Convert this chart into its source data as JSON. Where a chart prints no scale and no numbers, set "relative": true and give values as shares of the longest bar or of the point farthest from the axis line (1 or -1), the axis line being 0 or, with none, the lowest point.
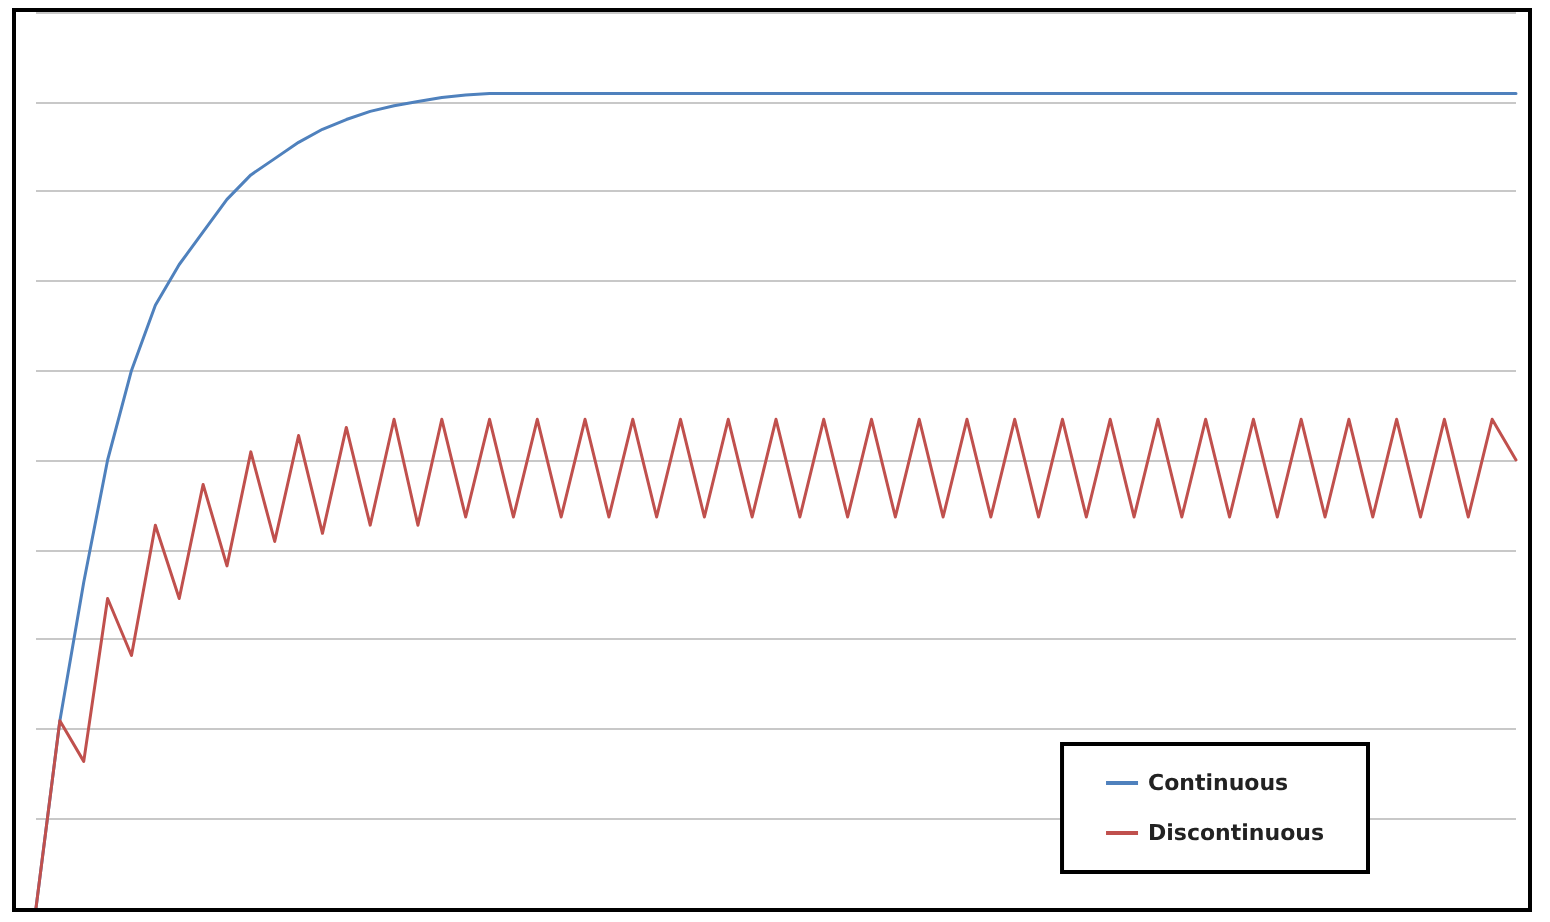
{
  "chart_data": {
    "type": "line",
    "relative": true,
    "categories": [
      null,
      null,
      null,
      null,
      null,
      null,
      null,
      null,
      null,
      null,
      null,
      null,
      null,
      null,
      null,
      null,
      null,
      null,
      null,
      null,
      null,
      null,
      null,
      null,
      null,
      null,
      null,
      null,
      null,
      null,
      null,
      null,
      null,
      null,
      null,
      null,
      null,
      null,
      null,
      null,
      null,
      null,
      null,
      null,
      null,
      null,
      null,
      null,
      null,
      null,
      null,
      null,
      null,
      null,
      null,
      null,
      null,
      null,
      null,
      null,
      null,
      null,
      null
    ],
    "series": [
      {
        "name": "Continuous",
        "color": "#4f81bd",
        "values": [
          0,
          0.23,
          0.4,
          0.55,
          0.66,
          0.74,
          0.79,
          0.83,
          0.87,
          0.9,
          0.92,
          0.94,
          0.956,
          0.968,
          0.978,
          0.985,
          0.99,
          0.995,
          0.998,
          1,
          1,
          1,
          1,
          1,
          1,
          1,
          1,
          1,
          1,
          1,
          1,
          1,
          1,
          1,
          1,
          1,
          1,
          1,
          1,
          1,
          1,
          1,
          1,
          1,
          1,
          1,
          1,
          1,
          1,
          1,
          1,
          1,
          1,
          1,
          1,
          1,
          1,
          1,
          1,
          1,
          1,
          1,
          1
        ]
      },
      {
        "name": "Discontinuous",
        "color": "#c0504d",
        "values": [
          0,
          0.23,
          0.18,
          0.38,
          0.31,
          0.47,
          0.38,
          0.52,
          0.42,
          0.56,
          0.45,
          0.58,
          0.46,
          0.59,
          0.47,
          0.6,
          0.47,
          0.6,
          0.48,
          0.6,
          0.48,
          0.6,
          0.48,
          0.6,
          0.48,
          0.6,
          0.48,
          0.6,
          0.48,
          0.6,
          0.48,
          0.6,
          0.48,
          0.6,
          0.48,
          0.6,
          0.48,
          0.6,
          0.48,
          0.6,
          0.48,
          0.6,
          0.48,
          0.6,
          0.48,
          0.6,
          0.48,
          0.6,
          0.48,
          0.6,
          0.48,
          0.6,
          0.48,
          0.6,
          0.48,
          0.6,
          0.48,
          0.6,
          0.48,
          0.6,
          0.48,
          0.6,
          0.55
        ]
      }
    ],
    "grid": "y",
    "legend": "bottom right",
    "tick_labels": false,
    "marker": "none",
    "line_style": "solid"
  }
}
